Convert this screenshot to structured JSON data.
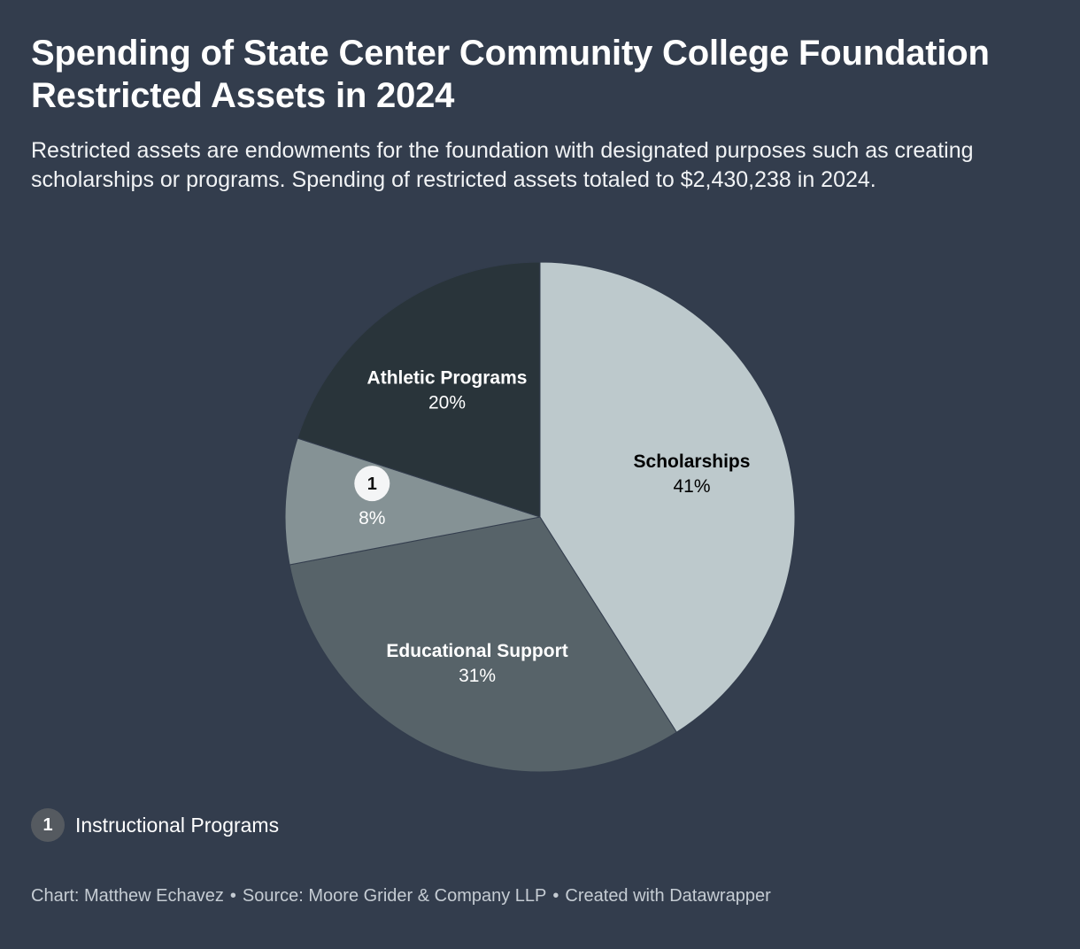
{
  "title": "Spending of State Center Community College Foundation Restricted Assets in 2024",
  "subtitle": "Restricted assets are endowments for the foundation with designated purposes such as creating scholarships or programs. Spending of restricted assets totaled to $2,430,238 in 2024.",
  "chart_data": {
    "type": "pie",
    "title": "Spending of State Center Community College Foundation Restricted Assets in 2024",
    "total": "$2,430,238",
    "slices": [
      {
        "name": "Scholarships",
        "value": 41,
        "label": "41%",
        "color": "#bdc9cc",
        "text_color": "#000000",
        "show_name": true
      },
      {
        "name": "Educational Support",
        "value": 31,
        "label": "31%",
        "color": "#576369",
        "text_color": "#ffffff",
        "show_name": true
      },
      {
        "name": "Instructional Programs",
        "value": 8,
        "label": "8%",
        "color": "#859295",
        "text_color": "#ffffff",
        "show_name": false,
        "marker": "1"
      },
      {
        "name": "Athletic Programs",
        "value": 20,
        "label": "20%",
        "color": "#29343a",
        "text_color": "#ffffff",
        "show_name": true
      }
    ]
  },
  "legend": {
    "marker": "1",
    "label": "Instructional Programs"
  },
  "footer": {
    "chart_credit": "Chart: Matthew Echavez",
    "source": "Source: Moore Grider & Company LLP",
    "tool": "Created with Datawrapper",
    "separator": "•"
  }
}
